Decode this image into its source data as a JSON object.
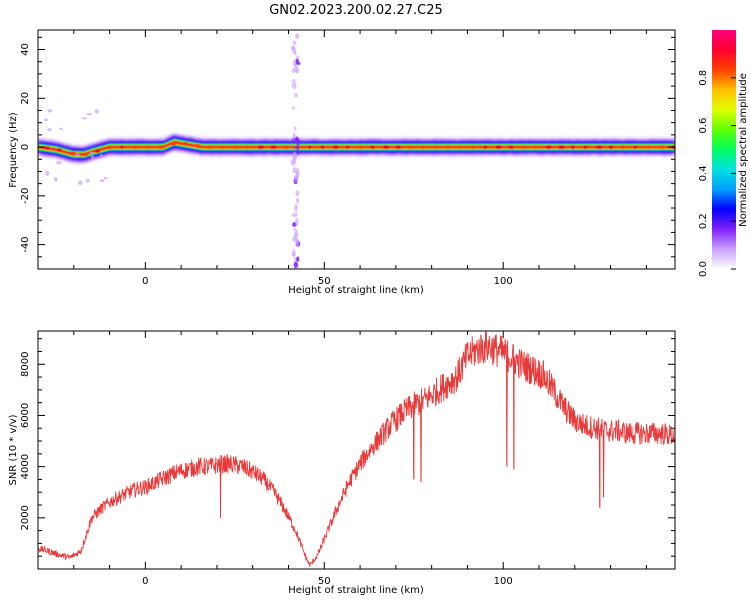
{
  "title": "GN02.2023.200.02.27.C25",
  "colors": {
    "snr_line": "#e83a3a",
    "background_spectrogram": "#ffffff",
    "colormap": [
      "#ffffff",
      "#c8a0ff",
      "#8020ff",
      "#0000ff",
      "#00a0ff",
      "#00e0e0",
      "#00ff60",
      "#60ff00",
      "#e0ff00",
      "#ffc000",
      "#ff4000",
      "#ff0030",
      "#ff0080"
    ]
  },
  "chart_data": [
    {
      "type": "heatmap",
      "name": "spectrogram",
      "xlabel": "Height of straight line (km)",
      "ylabel": "Frequency (Hz)",
      "xlim": [
        -30,
        148
      ],
      "ylim": [
        -50,
        48
      ],
      "xticks": [
        0,
        50,
        100
      ],
      "yticks": [
        -40,
        -20,
        0,
        20,
        40
      ],
      "colorbar": {
        "label": "Normalized spectral amplitude",
        "lim": [
          0,
          1
        ],
        "ticks": [
          "0.0",
          "0.2",
          "0.4",
          "0.6",
          "0.8"
        ]
      },
      "ridge": [
        [
          -30,
          0
        ],
        [
          -25,
          -1
        ],
        [
          -20,
          -3
        ],
        [
          -17,
          -3
        ],
        [
          -15,
          -2
        ],
        [
          -10,
          0
        ],
        [
          -5,
          0
        ],
        [
          0,
          0
        ],
        [
          5,
          0
        ],
        [
          8,
          2
        ],
        [
          12,
          1
        ],
        [
          16,
          0
        ],
        [
          20,
          0
        ],
        [
          45,
          0
        ],
        [
          148,
          0
        ]
      ],
      "vertical_stripe_x": 42
    },
    {
      "type": "line",
      "name": "snr",
      "xlabel": "Height of straight line (km)",
      "ylabel": "SNR (10 * v/v)",
      "xlim": [
        -30,
        148
      ],
      "ylim": [
        0,
        9300
      ],
      "xticks": [
        0,
        50,
        100
      ],
      "yticks": [
        2000,
        4000,
        6000,
        8000
      ],
      "series": [
        {
          "x": [
            -30,
            -27,
            -24,
            -21,
            -18,
            -15,
            -12,
            -9,
            -6,
            -3,
            0,
            3,
            6,
            9,
            12,
            15,
            18,
            21,
            24,
            27,
            30,
            33,
            36,
            39,
            42,
            45,
            46,
            48,
            51,
            54,
            57,
            60,
            63,
            66,
            69,
            72,
            75,
            78,
            81,
            84,
            87,
            90,
            93,
            96,
            99,
            102,
            105,
            108,
            111,
            114,
            117,
            120,
            123,
            126,
            129,
            132,
            135,
            138,
            141,
            144,
            148
          ],
          "y": [
            800,
            700,
            550,
            450,
            700,
            2000,
            2400,
            2700,
            2900,
            3100,
            3200,
            3400,
            3600,
            3800,
            3900,
            4000,
            4000,
            4100,
            4100,
            4000,
            3800,
            3500,
            3000,
            2300,
            1500,
            400,
            150,
            500,
            1500,
            2500,
            3400,
            4100,
            4700,
            5200,
            5700,
            6100,
            6400,
            6600,
            6900,
            7200,
            7500,
            8300,
            8600,
            8700,
            8500,
            8300,
            8000,
            7800,
            7600,
            7000,
            6300,
            5800,
            5600,
            5500,
            5400,
            5400,
            5300,
            5300,
            5300,
            5300,
            5200
          ],
          "dips": [
            [
              21,
              2000
            ],
            [
              75,
              3500
            ],
            [
              77,
              3400
            ],
            [
              101,
              4000
            ],
            [
              103,
              3900
            ],
            [
              127,
              2400
            ],
            [
              128,
              2800
            ]
          ]
        }
      ]
    }
  ]
}
